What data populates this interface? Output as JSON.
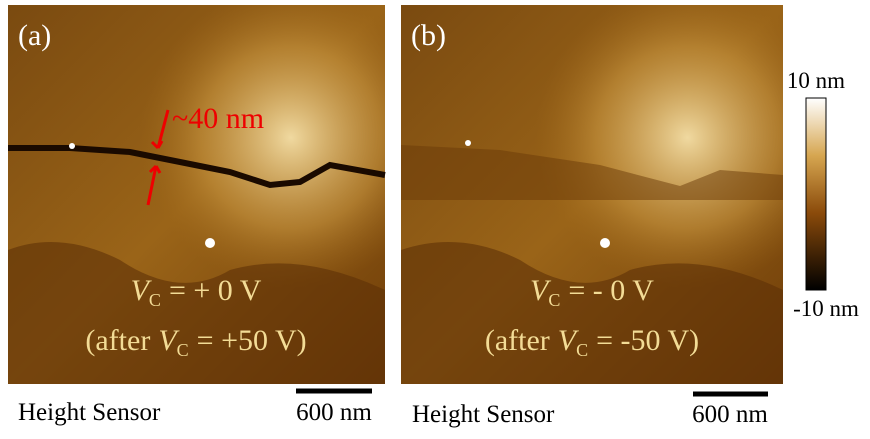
{
  "panels": [
    {
      "label": "(a)",
      "annotation": "~40 nm",
      "condition": {
        "symbol": "V",
        "subscript": "C",
        "text": "= + 0 V"
      },
      "history": {
        "prefix": "(after",
        "symbol": "V",
        "subscript": "C",
        "text": "= +50 V)"
      },
      "caption": "Height Sensor",
      "scale_bar": "600 nm"
    },
    {
      "label": "(b)",
      "condition": {
        "symbol": "V",
        "subscript": "C",
        "text": "= - 0 V"
      },
      "history": {
        "prefix": "(after",
        "symbol": "V",
        "subscript": "C",
        "text": "= -50 V)"
      },
      "caption": "Height Sensor",
      "scale_bar": "600 nm"
    }
  ],
  "colorbar": {
    "max_label": "10 nm",
    "min_label": "-10 nm"
  }
}
